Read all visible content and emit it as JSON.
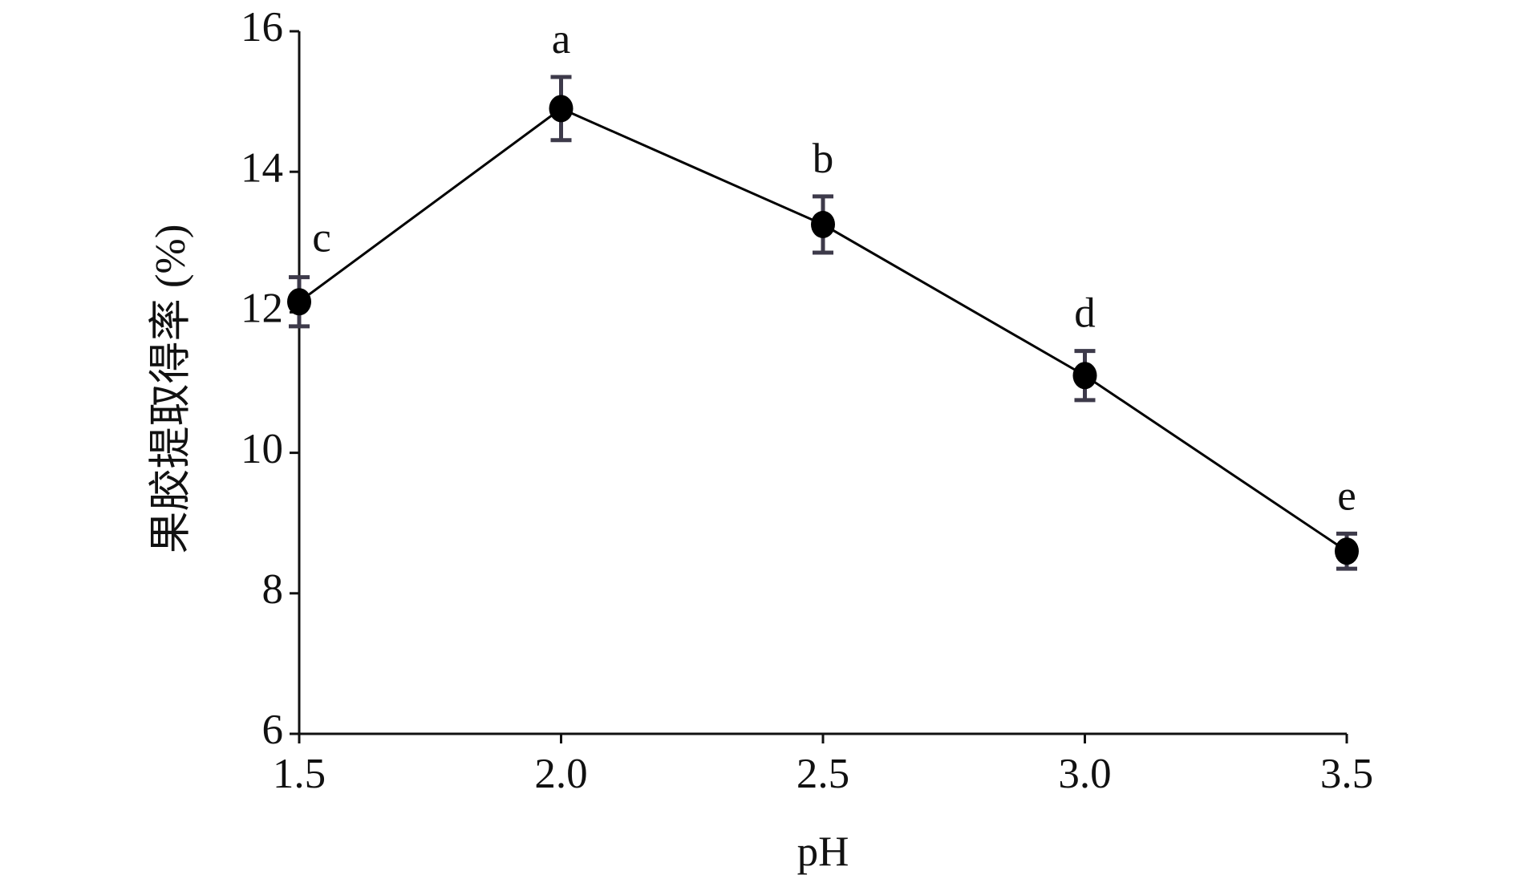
{
  "chart_data": {
    "type": "line",
    "y_label": "果胶提取得率 (%)",
    "x_label": "pH",
    "x": [
      1.5,
      2.0,
      2.5,
      3.0,
      3.5
    ],
    "series": [
      {
        "color": "#000000",
        "error_color": "#3d3a4a",
        "values": [
          12.15,
          14.9,
          13.25,
          11.1,
          8.6
        ],
        "errors": [
          0.35,
          0.45,
          0.4,
          0.35,
          0.25
        ],
        "labels": [
          "c",
          "a",
          "b",
          "d",
          "e"
        ]
      }
    ],
    "xlim": [
      1.5,
      3.5
    ],
    "xticks": [
      1.5,
      {
        "value": 2,
        "label": "2.0"
      },
      2.5,
      {
        "value": 3,
        "label": "3.0"
      },
      3.5
    ],
    "ylim": [
      6,
      16
    ],
    "yticks": [
      6,
      8,
      10,
      12,
      14,
      16
    ],
    "grid": false
  }
}
